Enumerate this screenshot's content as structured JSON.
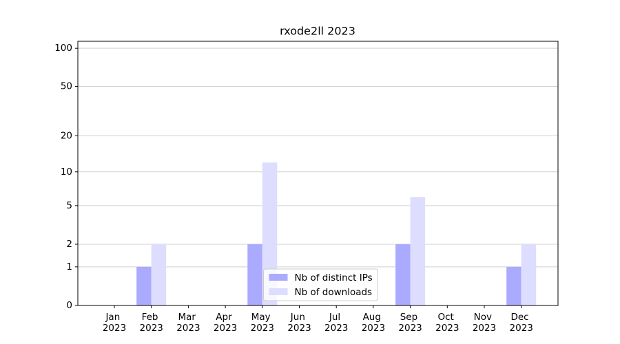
{
  "chart_data": {
    "type": "bar",
    "title": "rxode2ll 2023",
    "categories": [
      "Jan 2023",
      "Feb 2023",
      "Mar 2023",
      "Apr 2023",
      "May 2023",
      "Jun 2023",
      "Jul 2023",
      "Aug 2023",
      "Sep 2023",
      "Oct 2023",
      "Nov 2023",
      "Dec 2023"
    ],
    "series": [
      {
        "name": "Nb of distinct IPs",
        "color": "#aaaaff",
        "values": [
          0,
          1,
          0,
          0,
          2,
          0,
          0,
          0,
          2,
          0,
          0,
          1
        ]
      },
      {
        "name": "Nb of downloads",
        "color": "#ddddff",
        "values": [
          0,
          2,
          0,
          0,
          12,
          0,
          0,
          0,
          6,
          0,
          0,
          2
        ]
      }
    ],
    "yscale": "log1p",
    "ylim": [
      0,
      113.5
    ],
    "yticks": [
      0,
      1,
      2,
      5,
      10,
      20,
      50,
      100
    ],
    "grid": true,
    "legend": "lower center"
  }
}
